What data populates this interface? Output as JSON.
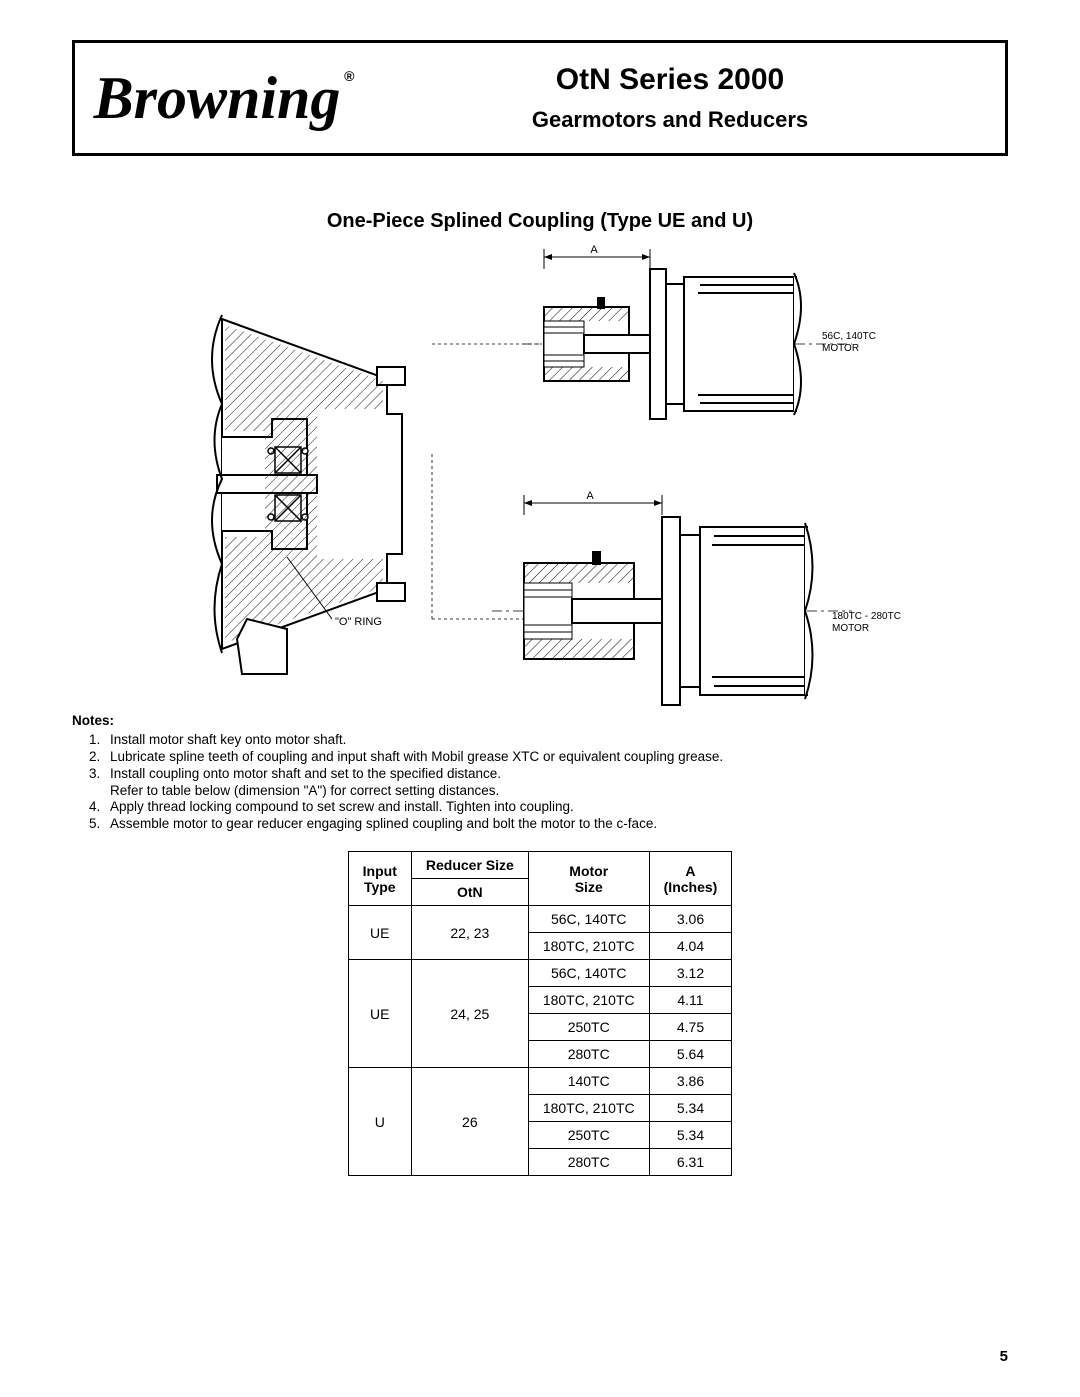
{
  "header": {
    "brand": "Browning",
    "registered": "®",
    "title": "OtN Series 2000",
    "subtitle": "Gearmotors and Reducers"
  },
  "section_title": "One-Piece Splined Coupling (Type UE and U)",
  "diagram_labels": {
    "o_ring": "\"O\" RING",
    "dim_a_top": "A",
    "dim_a_bot": "A",
    "motor_top_l1": "56C, 140TC",
    "motor_top_l2": "MOTOR",
    "motor_bot_l1": "180TC - 280TC",
    "motor_bot_l2": "MOTOR"
  },
  "notes": {
    "label": "Notes:",
    "items": [
      "Install motor shaft key onto motor shaft.",
      "Lubricate spline teeth of coupling and input shaft with Mobil grease XTC or equivalent coupling grease.",
      "Install coupling onto motor shaft and set to the specified distance.\nRefer to table below (dimension \"A\") for correct setting distances.",
      "Apply thread locking compound to set screw and install. Tighten into coupling.",
      "Assemble motor to gear reducer engaging splined coupling and bolt the motor to the c-face."
    ]
  },
  "table": {
    "headers": {
      "input_type_top": "Input",
      "input_type_bot": "Type",
      "reducer_size_top": "Reducer Size",
      "reducer_size_bot": "OtN",
      "motor_top": "Motor",
      "motor_bot": "Size",
      "a_top": "A",
      "a_bot": "(Inches)"
    },
    "rows": [
      {
        "g_input": "UE",
        "g_reducer": "22, 23",
        "g_span": 2,
        "motor": "56C, 140TC",
        "a": "3.06"
      },
      {
        "motor": "180TC, 210TC",
        "a": "4.04"
      },
      {
        "g_input": "UE",
        "g_reducer": "24, 25",
        "g_span": 4,
        "motor": "56C, 140TC",
        "a": "3.12"
      },
      {
        "motor": "180TC, 210TC",
        "a": "4.11"
      },
      {
        "motor": "250TC",
        "a": "4.75"
      },
      {
        "motor": "280TC",
        "a": "5.64"
      },
      {
        "g_input": "U",
        "g_reducer": "26",
        "g_span": 4,
        "motor": "140TC",
        "a": "3.86"
      },
      {
        "motor": "180TC, 210TC",
        "a": "5.34"
      },
      {
        "motor": "250TC",
        "a": "5.34"
      },
      {
        "motor": "280TC",
        "a": "6.31"
      }
    ]
  },
  "page_number": "5",
  "colors": {
    "text": "#000000",
    "bg": "#ffffff",
    "border": "#000000"
  }
}
